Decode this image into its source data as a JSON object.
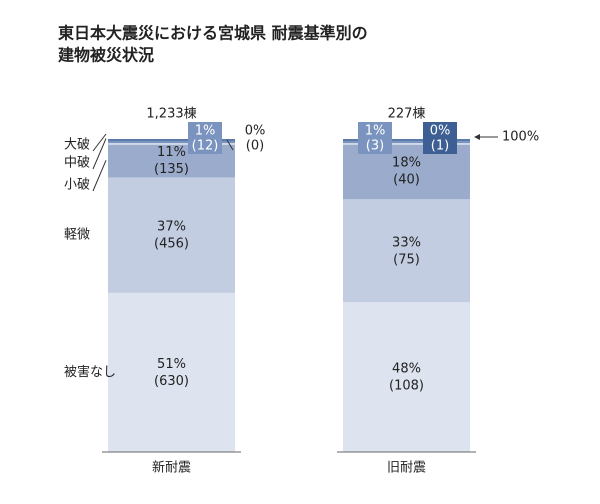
{
  "chart_data": {
    "type": "stacked_bar_100",
    "title": [
      "東日本大震災における宮城県 耐震基準別の",
      "建物被災状況"
    ],
    "categories": [
      "新耐震",
      "旧耐震"
    ],
    "totals": [
      1233,
      227
    ],
    "total_labels": [
      "1,233棟",
      "227棟"
    ],
    "series": [
      {
        "name": "被害なし",
        "color": "#dde3ef",
        "values": [
          51,
          48
        ],
        "value_labels": [
          "51%",
          "48%"
        ],
        "counts": [
          630,
          108
        ],
        "count_labels": [
          "(630)",
          "(108)"
        ]
      },
      {
        "name": "軽微",
        "color": "#c3cde1",
        "values": [
          37,
          33
        ],
        "value_labels": [
          "37%",
          "33%"
        ],
        "counts": [
          456,
          75
        ],
        "count_labels": [
          "(456)",
          "(75)"
        ]
      },
      {
        "name": "小破",
        "color": "#9aabcb",
        "values": [
          11,
          18
        ],
        "value_labels": [
          "11%",
          "18%"
        ],
        "counts": [
          135,
          40
        ],
        "count_labels": [
          "(135)",
          "(40)"
        ]
      },
      {
        "name": "中破",
        "color": "#7a93bf",
        "values": [
          1,
          1
        ],
        "value_labels": [
          "1%",
          "1%"
        ],
        "counts": [
          12,
          3
        ],
        "count_labels": [
          "(12)",
          "(3)"
        ]
      },
      {
        "name": "大破",
        "color": "#3e5f94",
        "values": [
          0,
          0
        ],
        "value_labels": [
          "0%",
          "0%"
        ],
        "counts": [
          0,
          1
        ],
        "count_labels": [
          "(0)",
          "(1)"
        ]
      }
    ],
    "ylim": [
      0,
      100
    ],
    "annotation": "100%"
  }
}
